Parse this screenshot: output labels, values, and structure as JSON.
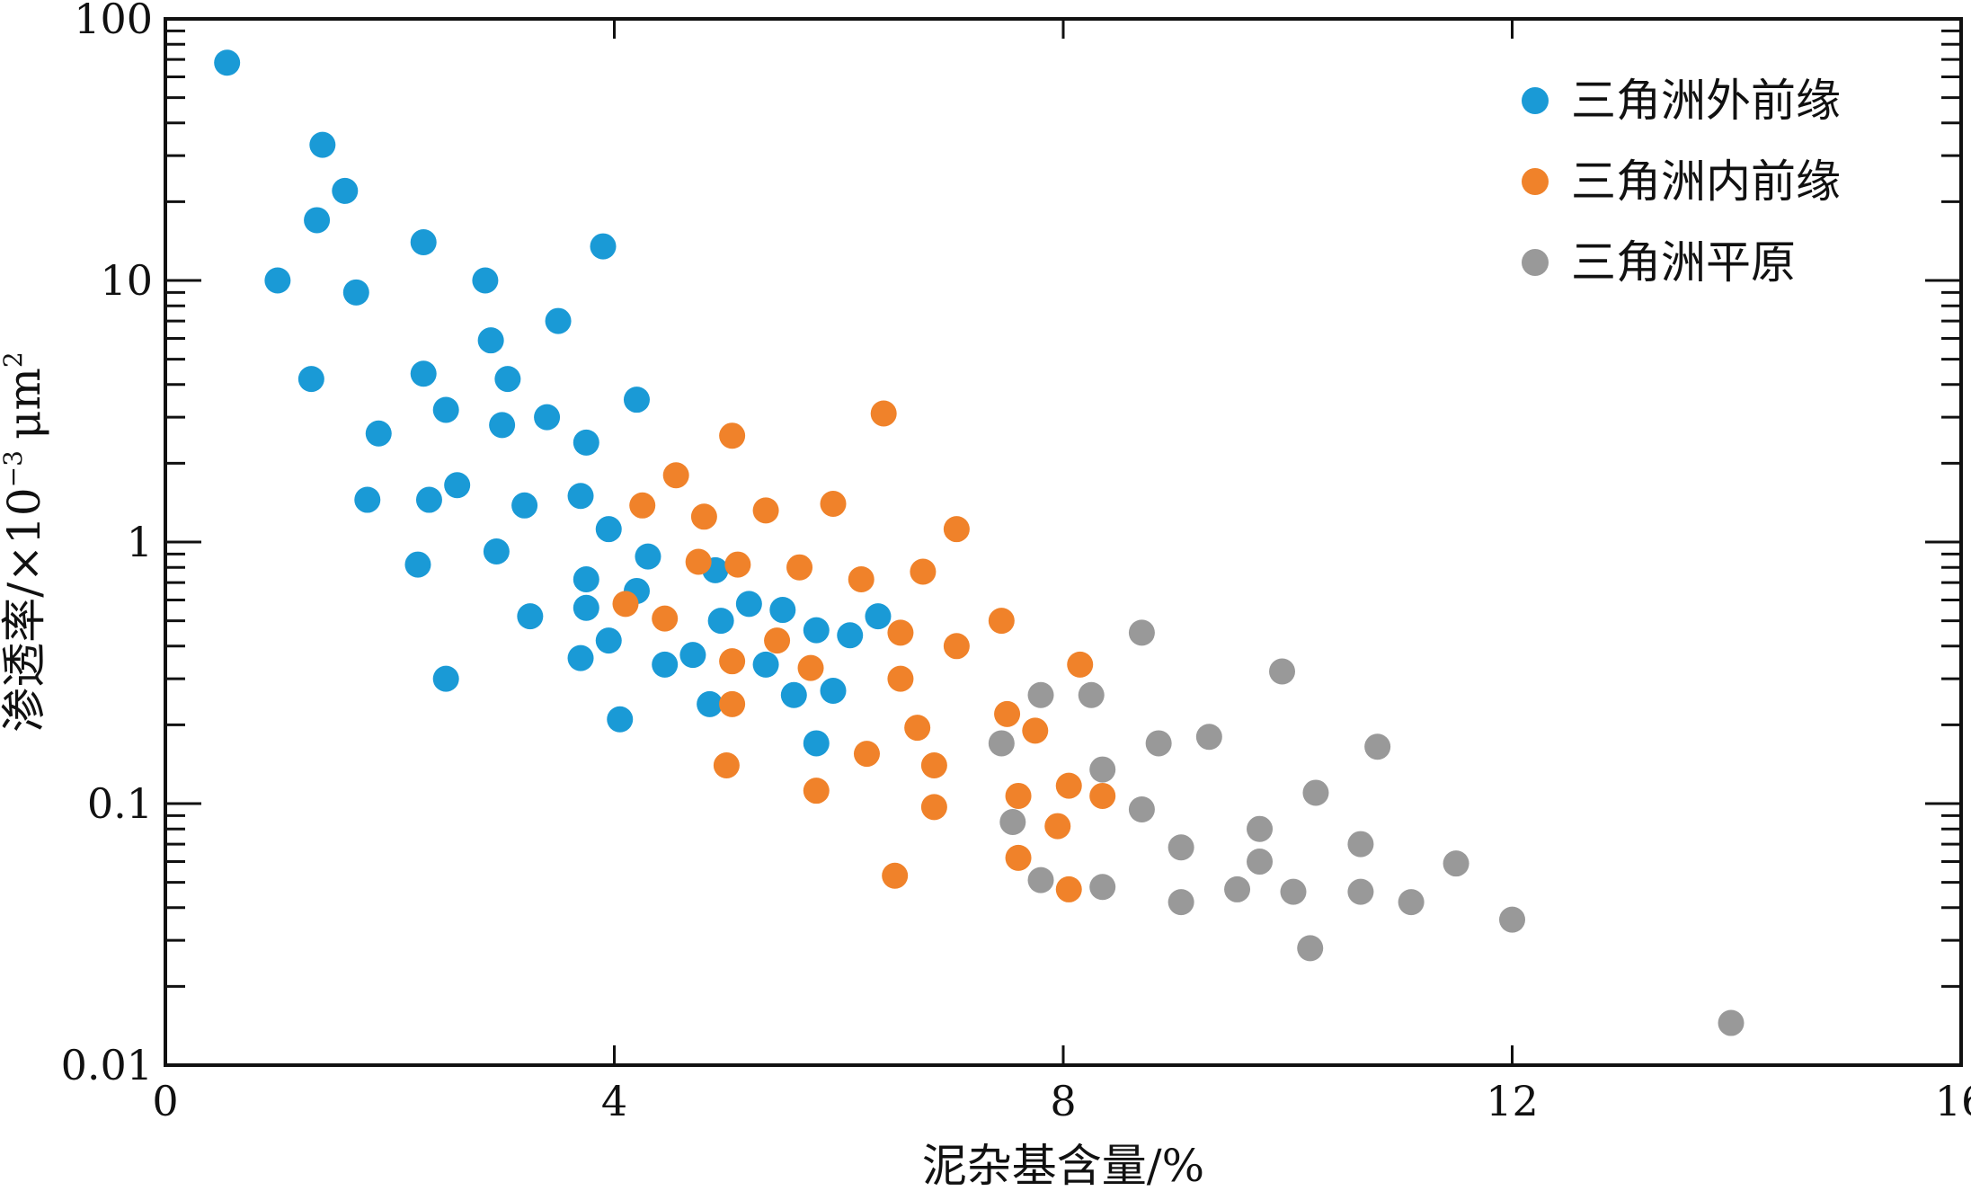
{
  "chart_data": {
    "type": "scatter",
    "xlabel": "泥杂基含量/%",
    "ylabel_main": "渗透率/×10",
    "ylabel_exp": "−3",
    "ylabel_unit": "μm",
    "ylabel_unit_exp": "2",
    "xlim": [
      0,
      16
    ],
    "ylim": [
      0.01,
      100
    ],
    "yscale": "log",
    "x_ticks": [
      0,
      4,
      8,
      12,
      16
    ],
    "x_tick_labels": [
      "0",
      "4",
      "8",
      "12",
      "16"
    ],
    "y_ticks": [
      0.01,
      0.1,
      1,
      10,
      100
    ],
    "y_tick_labels": [
      "0.01",
      "0.1",
      "1",
      "10",
      "100"
    ],
    "grid": false,
    "legend_position": "top-right",
    "series": [
      {
        "name": "三角洲外前缘",
        "color": "#1a9ad6",
        "points": [
          [
            0.55,
            68
          ],
          [
            1.4,
            33
          ],
          [
            1.6,
            22
          ],
          [
            1.35,
            17
          ],
          [
            1.0,
            10
          ],
          [
            1.7,
            9
          ],
          [
            2.3,
            14
          ],
          [
            3.9,
            13.5
          ],
          [
            2.85,
            10
          ],
          [
            3.5,
            7
          ],
          [
            2.9,
            5.9
          ],
          [
            2.3,
            4.4
          ],
          [
            1.3,
            4.2
          ],
          [
            3.05,
            4.2
          ],
          [
            4.2,
            3.5
          ],
          [
            2.5,
            3.2
          ],
          [
            3.4,
            3.0
          ],
          [
            3.0,
            2.8
          ],
          [
            1.9,
            2.6
          ],
          [
            3.75,
            2.4
          ],
          [
            2.6,
            1.65
          ],
          [
            1.8,
            1.45
          ],
          [
            2.35,
            1.45
          ],
          [
            3.2,
            1.38
          ],
          [
            3.7,
            1.5
          ],
          [
            3.95,
            1.12
          ],
          [
            2.95,
            0.92
          ],
          [
            4.3,
            0.88
          ],
          [
            2.25,
            0.82
          ],
          [
            4.9,
            0.78
          ],
          [
            3.75,
            0.72
          ],
          [
            4.2,
            0.65
          ],
          [
            3.75,
            0.56
          ],
          [
            3.25,
            0.52
          ],
          [
            5.2,
            0.58
          ],
          [
            5.5,
            0.55
          ],
          [
            4.95,
            0.5
          ],
          [
            6.35,
            0.52
          ],
          [
            5.8,
            0.46
          ],
          [
            6.1,
            0.44
          ],
          [
            3.95,
            0.42
          ],
          [
            3.7,
            0.36
          ],
          [
            4.7,
            0.37
          ],
          [
            4.45,
            0.34
          ],
          [
            5.35,
            0.34
          ],
          [
            2.5,
            0.3
          ],
          [
            5.95,
            0.27
          ],
          [
            5.6,
            0.26
          ],
          [
            4.85,
            0.24
          ],
          [
            4.05,
            0.21
          ],
          [
            5.8,
            0.17
          ]
        ]
      },
      {
        "name": "三角洲内前缘",
        "color": "#f0822a",
        "points": [
          [
            6.4,
            3.1
          ],
          [
            5.05,
            2.55
          ],
          [
            4.55,
            1.8
          ],
          [
            5.95,
            1.4
          ],
          [
            4.25,
            1.38
          ],
          [
            5.35,
            1.32
          ],
          [
            4.8,
            1.25
          ],
          [
            7.05,
            1.12
          ],
          [
            4.75,
            0.84
          ],
          [
            5.1,
            0.82
          ],
          [
            5.65,
            0.8
          ],
          [
            6.75,
            0.77
          ],
          [
            6.2,
            0.72
          ],
          [
            4.1,
            0.58
          ],
          [
            4.45,
            0.51
          ],
          [
            7.45,
            0.5
          ],
          [
            6.55,
            0.45
          ],
          [
            5.45,
            0.42
          ],
          [
            7.05,
            0.4
          ],
          [
            5.75,
            0.33
          ],
          [
            5.05,
            0.35
          ],
          [
            8.15,
            0.34
          ],
          [
            6.55,
            0.3
          ],
          [
            5.05,
            0.24
          ],
          [
            7.5,
            0.22
          ],
          [
            6.7,
            0.195
          ],
          [
            7.75,
            0.19
          ],
          [
            6.25,
            0.155
          ],
          [
            5.0,
            0.14
          ],
          [
            6.85,
            0.14
          ],
          [
            8.05,
            0.117
          ],
          [
            5.8,
            0.112
          ],
          [
            7.6,
            0.107
          ],
          [
            8.35,
            0.107
          ],
          [
            6.85,
            0.097
          ],
          [
            7.95,
            0.082
          ],
          [
            7.6,
            0.062
          ],
          [
            6.5,
            0.053
          ],
          [
            8.05,
            0.047
          ]
        ]
      },
      {
        "name": "三角洲平原",
        "color": "#999999",
        "points": [
          [
            8.7,
            0.45
          ],
          [
            9.95,
            0.32
          ],
          [
            7.8,
            0.26
          ],
          [
            8.25,
            0.26
          ],
          [
            7.45,
            0.17
          ],
          [
            8.85,
            0.17
          ],
          [
            9.3,
            0.18
          ],
          [
            10.8,
            0.165
          ],
          [
            8.35,
            0.135
          ],
          [
            10.25,
            0.11
          ],
          [
            8.7,
            0.095
          ],
          [
            7.55,
            0.085
          ],
          [
            9.75,
            0.08
          ],
          [
            9.05,
            0.068
          ],
          [
            10.65,
            0.07
          ],
          [
            9.75,
            0.06
          ],
          [
            11.5,
            0.059
          ],
          [
            7.8,
            0.051
          ],
          [
            8.35,
            0.048
          ],
          [
            9.55,
            0.047
          ],
          [
            10.05,
            0.046
          ],
          [
            10.65,
            0.046
          ],
          [
            9.05,
            0.042
          ],
          [
            11.1,
            0.042
          ],
          [
            12.0,
            0.036
          ],
          [
            10.2,
            0.028
          ],
          [
            13.95,
            0.0145
          ]
        ]
      }
    ]
  }
}
